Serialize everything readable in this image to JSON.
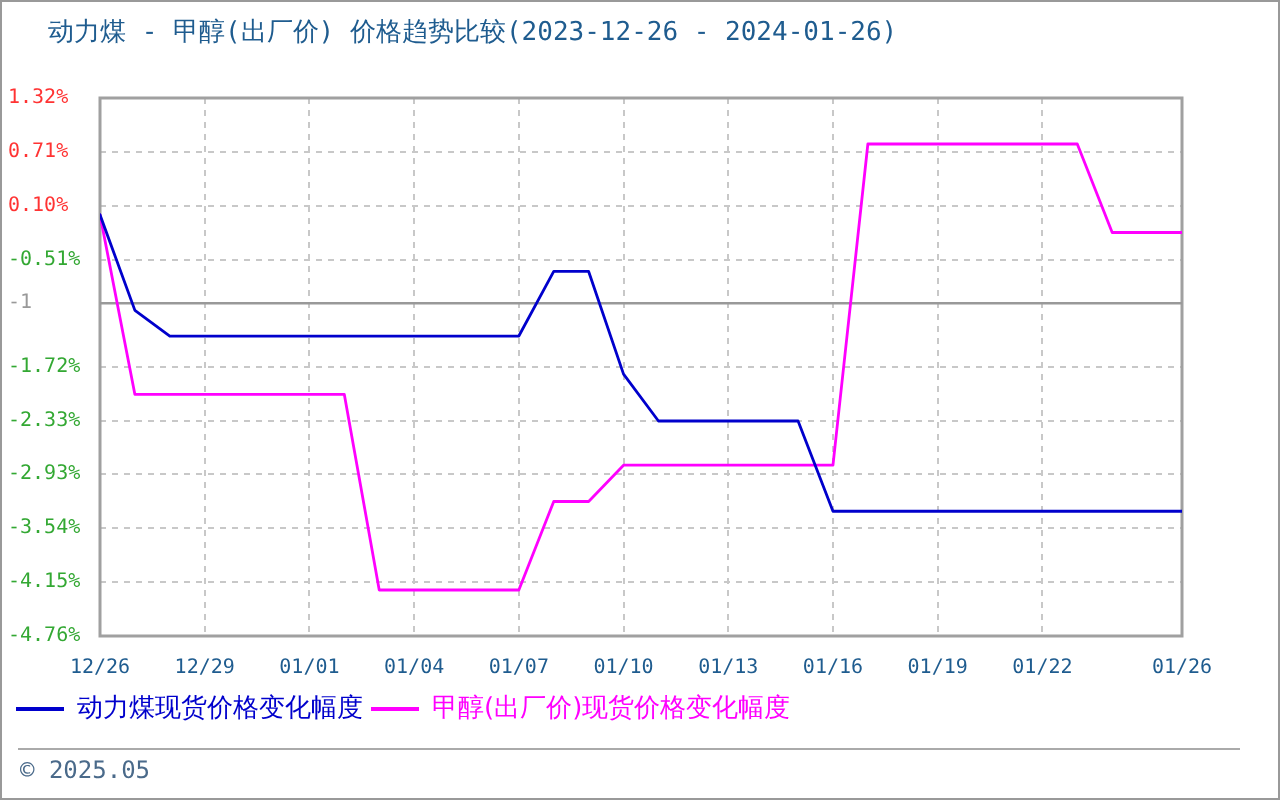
{
  "chart_data": {
    "type": "line",
    "title": "动力煤 - 甲醇(出厂价) 价格趋势比较(2023-12-26 - 2024-01-26)",
    "x": [
      "2023-12-26",
      "2023-12-27",
      "2023-12-28",
      "2023-12-29",
      "2023-12-30",
      "2023-12-31",
      "2024-01-01",
      "2024-01-02",
      "2024-01-03",
      "2024-01-04",
      "2024-01-05",
      "2024-01-06",
      "2024-01-07",
      "2024-01-08",
      "2024-01-09",
      "2024-01-10",
      "2024-01-11",
      "2024-01-12",
      "2024-01-13",
      "2024-01-14",
      "2024-01-15",
      "2024-01-16",
      "2024-01-17",
      "2024-01-18",
      "2024-01-19",
      "2024-01-20",
      "2024-01-21",
      "2024-01-22",
      "2024-01-23",
      "2024-01-24",
      "2024-01-25",
      "2024-01-26"
    ],
    "series": [
      {
        "name": "动力煤现货价格变化幅度",
        "color": "#0000cc",
        "values": [
          0,
          -1.08,
          -1.37,
          -1.37,
          -1.37,
          -1.37,
          -1.37,
          -1.37,
          -1.37,
          -1.37,
          -1.37,
          -1.37,
          -1.37,
          -0.64,
          -0.64,
          -1.8,
          -2.33,
          -2.33,
          -2.33,
          -2.33,
          -2.33,
          -3.35,
          -3.35,
          -3.35,
          -3.35,
          -3.35,
          -3.35,
          -3.35,
          -3.35,
          -3.35,
          -3.35,
          -3.35
        ]
      },
      {
        "name": "甲醇(出厂价)现货价格变化幅度",
        "color": "#ff00ff",
        "values": [
          0,
          -2.03,
          -2.03,
          -2.03,
          -2.03,
          -2.03,
          -2.03,
          -2.03,
          -4.24,
          -4.24,
          -4.24,
          -4.24,
          -4.24,
          -3.24,
          -3.24,
          -2.83,
          -2.83,
          -2.83,
          -2.83,
          -2.83,
          -2.83,
          -2.83,
          0.8,
          0.8,
          0.8,
          0.8,
          0.8,
          0.8,
          0.8,
          -0.2,
          -0.2,
          -0.2
        ]
      }
    ],
    "xlim": [
      "2023-12-26",
      "2024-01-26"
    ],
    "xticks": [
      {
        "value": "2023-12-26",
        "label": "12/26"
      },
      {
        "value": "2023-12-29",
        "label": "12/29"
      },
      {
        "value": "2024-01-01",
        "label": "01/01"
      },
      {
        "value": "2024-01-04",
        "label": "01/04"
      },
      {
        "value": "2024-01-07",
        "label": "01/07"
      },
      {
        "value": "2024-01-10",
        "label": "01/10"
      },
      {
        "value": "2024-01-13",
        "label": "01/13"
      },
      {
        "value": "2024-01-16",
        "label": "01/16"
      },
      {
        "value": "2024-01-19",
        "label": "01/19"
      },
      {
        "value": "2024-01-22",
        "label": "01/22"
      },
      {
        "value": "2024-01-26",
        "label": "01/26"
      }
    ],
    "ylim": [
      -4.76,
      1.32
    ],
    "yticks": [
      {
        "value": 1.32,
        "label": "1.32%"
      },
      {
        "value": 0.71,
        "label": "0.71%"
      },
      {
        "value": 0.1,
        "label": "0.10%"
      },
      {
        "value": -0.51,
        "label": "-0.51%"
      },
      -1,
      {
        "value": -1.72,
        "label": "-1.72%"
      },
      {
        "value": -2.33,
        "label": "-2.33%"
      },
      {
        "value": -2.93,
        "label": "-2.93%"
      },
      {
        "value": -3.54,
        "label": "-3.54%"
      },
      {
        "value": -4.15,
        "label": "-4.15%"
      },
      {
        "value": -4.76,
        "label": "-4.76%"
      }
    ],
    "ref_lines": [
      {
        "axis": "y",
        "value": -1,
        "color": "#999999"
      }
    ],
    "grid": true,
    "legend": "bottom",
    "marker": "none",
    "annotations": [
      "© 2025.05"
    ]
  }
}
